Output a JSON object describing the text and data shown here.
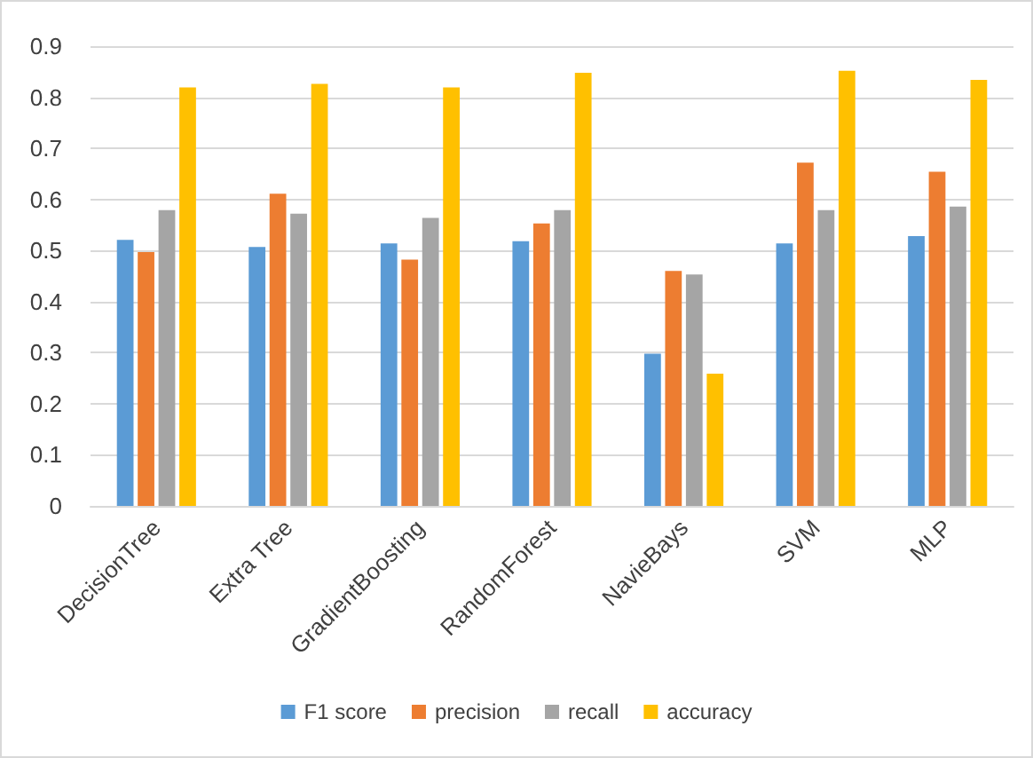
{
  "chart_data": {
    "type": "bar",
    "categories": [
      "DecisionTree",
      "Extra Tree",
      "GradientBoosting",
      "RandomForest",
      "NavieBays",
      "SVM",
      "MLP"
    ],
    "series": [
      {
        "name": "F1 score",
        "color": "#5b9bd5",
        "values": [
          0.521,
          0.507,
          0.514,
          0.518,
          0.298,
          0.514,
          0.528
        ]
      },
      {
        "name": "precision",
        "color": "#ed7d31",
        "values": [
          0.497,
          0.611,
          0.482,
          0.553,
          0.46,
          0.672,
          0.654
        ]
      },
      {
        "name": "recall",
        "color": "#a5a5a5",
        "values": [
          0.579,
          0.572,
          0.564,
          0.579,
          0.453,
          0.579,
          0.586
        ]
      },
      {
        "name": "accuracy",
        "color": "#ffc000",
        "values": [
          0.819,
          0.826,
          0.819,
          0.848,
          0.259,
          0.852,
          0.834
        ]
      }
    ],
    "ylim": [
      0,
      0.9
    ],
    "yticks": [
      0,
      0.1,
      0.2,
      0.3,
      0.4,
      0.5,
      0.6,
      0.7,
      0.8,
      0.9
    ],
    "grid": "y",
    "legend": "bottom"
  }
}
